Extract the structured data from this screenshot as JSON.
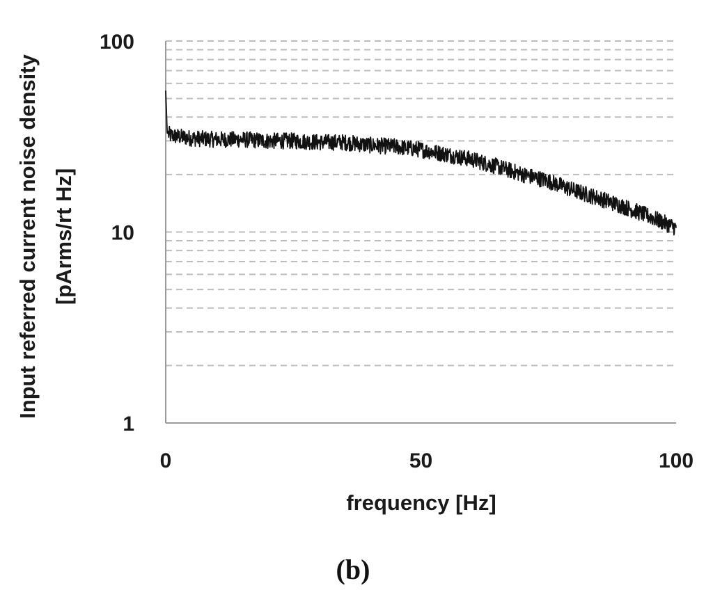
{
  "chart_data": {
    "type": "line",
    "title": "",
    "xlabel": "frequency [Hz]",
    "ylabel_lines": [
      "Input referred current noise  density",
      "[pArms/rt Hz]"
    ],
    "xlim": [
      0,
      100
    ],
    "ylim": [
      1,
      100
    ],
    "yscale": "log",
    "x_ticks": [
      0,
      50,
      100
    ],
    "x_tick_labels": [
      "0",
      "50",
      "100"
    ],
    "y_ticks": [
      1,
      10,
      100
    ],
    "y_tick_labels": [
      "1",
      "10",
      "100"
    ],
    "grid": "horizontal dashed at log minor and major ticks",
    "series": [
      {
        "color": "#111111",
        "x": [
          0,
          0.3,
          1,
          5,
          10,
          15,
          20,
          25,
          30,
          35,
          40,
          45,
          50,
          55,
          60,
          65,
          70,
          75,
          80,
          85,
          90,
          95,
          100
        ],
        "values": [
          55,
          33,
          32,
          31,
          30.5,
          30.5,
          30,
          30,
          29.5,
          29.5,
          28.5,
          28,
          27,
          25.5,
          24,
          22,
          20,
          18.5,
          16.5,
          15,
          13.5,
          12,
          10.5
        ]
      }
    ],
    "caption": "(b)"
  },
  "colors": {
    "axis": "#9a9a9a",
    "grid": "#bdbdbd",
    "line": "#111111"
  }
}
